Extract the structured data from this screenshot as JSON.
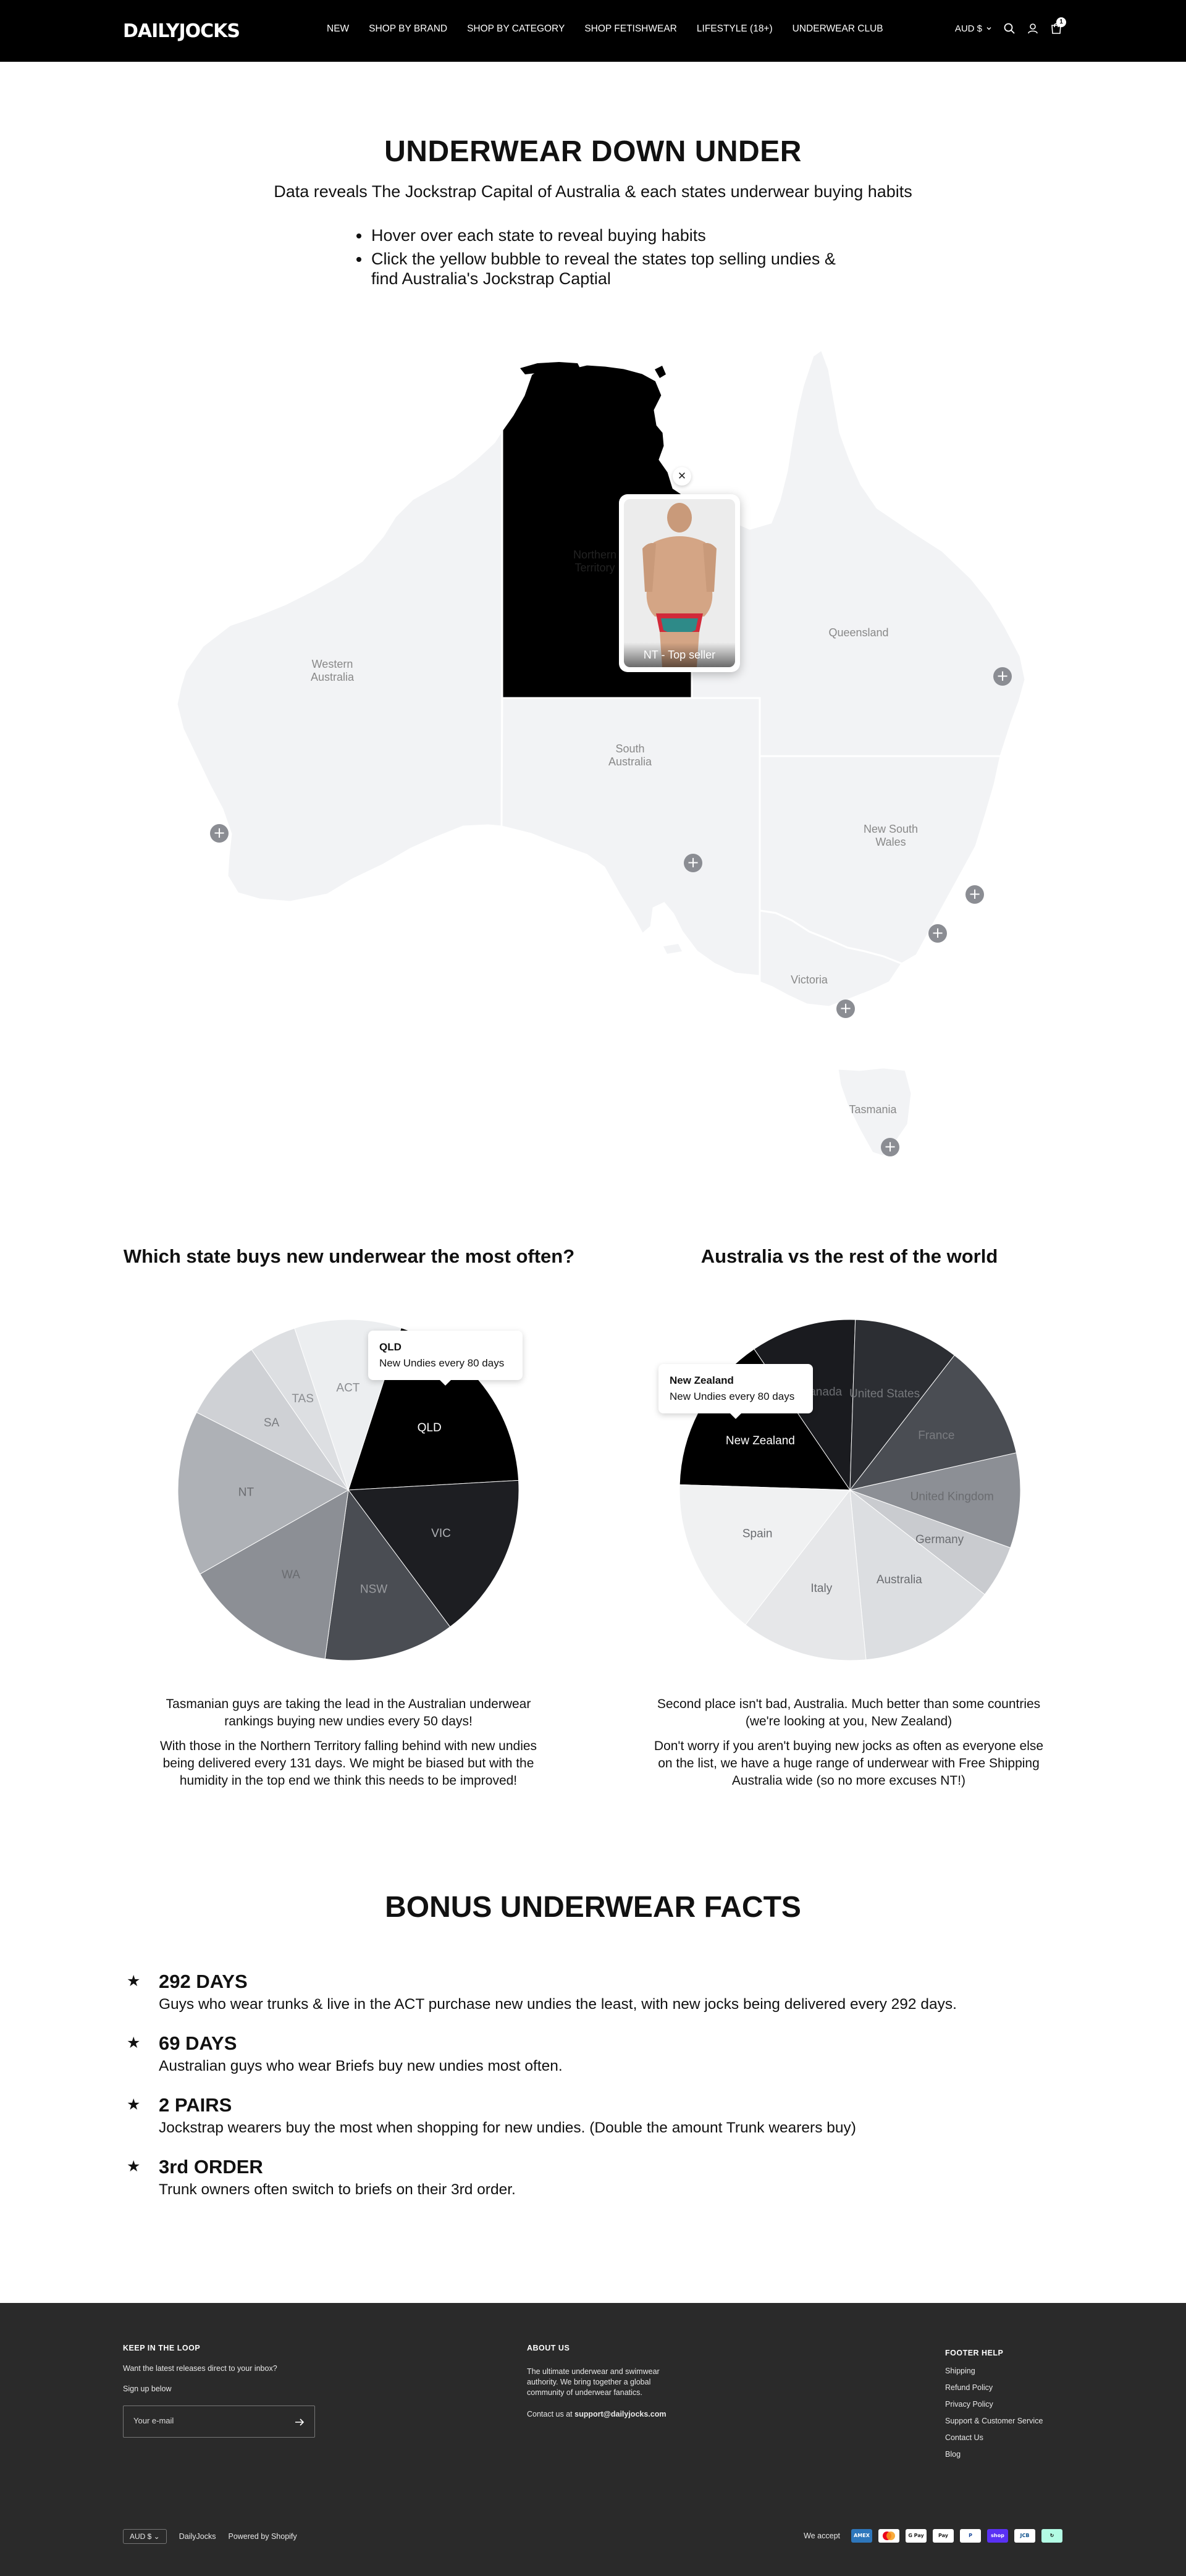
{
  "header": {
    "logo": "DAILYJOCKS",
    "nav": [
      "NEW",
      "SHOP BY BRAND",
      "SHOP BY CATEGORY",
      "SHOP FETISHWEAR",
      "LIFESTYLE (18+)",
      "UNDERWEAR CLUB"
    ],
    "currency": "AUD $",
    "cart_count": "1"
  },
  "intro": {
    "title": "UNDERWEAR DOWN UNDER",
    "subtitle": "Data reveals The Jockstrap Capital of Australia & each states underwear buying habits",
    "bullets": [
      "Hover over each state to reveal buying habits",
      "Click the yellow bubble to reveal the states top selling undies & find Australia's Jockstrap Captial"
    ]
  },
  "map": {
    "states": {
      "wa": "Western Australia",
      "nt": "Northern Territory",
      "qld": "Queensland",
      "sa": "South Australia",
      "nsw": "New South Wales",
      "vic": "Victoria",
      "tas": "Tasmania"
    },
    "active_state": "nt",
    "popup_caption": "NT - Top seller"
  },
  "pies": {
    "left_heading": "Which state buys new underwear the most often?",
    "right_heading": "Australia vs the rest of the world",
    "left_tooltip": {
      "title": "QLD",
      "text": "New Undies every 80 days"
    },
    "right_tooltip": {
      "title": "New Zealand",
      "text": "New Undies every 80 days"
    },
    "left_text": [
      "Tasmanian guys are taking the lead in the Australian underwear rankings buying new undies every 50 days!",
      "With those in the Northern Territory falling behind with new undies being delivered every 131 days. We might be biased but with the humidity in the top end we think this needs to be improved!"
    ],
    "right_text": [
      "Second place isn't bad, Australia. Much better than some countries (we're looking at you, New Zealand)",
      "Don't worry if you aren't buying new jocks as often as everyone else on the list, we have a huge range of underwear with Free Shipping Australia wide (so no more excuses NT!)"
    ]
  },
  "chart_data": [
    {
      "type": "pie",
      "title": "Which state buys new underwear the most often?",
      "categories": [
        "QLD",
        "VIC",
        "NSW",
        "WA",
        "NT",
        "SA",
        "TAS",
        "ACT"
      ],
      "values": [
        17,
        14,
        11,
        13,
        14,
        7,
        4,
        9
      ],
      "colors": [
        "#000000",
        "#1d1e22",
        "#4a4d53",
        "#8c8f95",
        "#aeb1b6",
        "#cfd1d5",
        "#dddfe2",
        "#eceef0"
      ],
      "label_colors": [
        "#ffffff",
        "#b0b2b6",
        "#9a9ca0",
        "#6a6c70",
        "#6a6c70",
        "#7a7c80",
        "#8a8c90",
        "#8a8c90"
      ],
      "annotations": [
        {
          "category": "QLD",
          "text": "New Undies every 80 days"
        }
      ]
    },
    {
      "type": "pie",
      "title": "Australia vs the rest of the world",
      "categories": [
        "New Zealand",
        "Canada",
        "United States",
        "France",
        "United Kingdom",
        "Germany",
        "Australia",
        "Italy",
        "Spain"
      ],
      "values": [
        15,
        10,
        10,
        11,
        9,
        5,
        13,
        12,
        15
      ],
      "colors": [
        "#000000",
        "#1a1b1f",
        "#2c2e33",
        "#4a4d53",
        "#8c8f95",
        "#c9cbcf",
        "#dcdee1",
        "#e6e7e9",
        "#f0f1f2"
      ],
      "label_colors": [
        "#ffffff",
        "#6a6c70",
        "#76787c",
        "#7a7c80",
        "#6a6c70",
        "#6a6c70",
        "#6a6c70",
        "#6a6c70",
        "#6a6c70"
      ],
      "annotations": [
        {
          "category": "New Zealand",
          "text": "New Undies every 80 days"
        }
      ]
    }
  ],
  "bonus": {
    "title": "BONUS UNDERWEAR FACTS",
    "facts": [
      {
        "title": "292 DAYS",
        "text": "Guys who wear trunks & live in the ACT purchase new undies the least, with new jocks being delivered every 292 days."
      },
      {
        "title": "69 DAYS",
        "text": "Australian guys who wear Briefs buy new undies most often."
      },
      {
        "title": "2 PAIRS",
        "text": "Jockstrap wearers buy the most when shopping for new undies. (Double the amount Trunk wearers buy)"
      },
      {
        "title": "3rd ORDER",
        "text": "Trunk owners often switch to briefs on their 3rd order."
      }
    ]
  },
  "footer": {
    "newsletter_title": "KEEP IN THE LOOP",
    "newsletter_text": "Want the latest releases direct to your inbox?",
    "signup": "Sign up below",
    "email_placeholder": "Your e-mail",
    "about_title": "ABOUT US",
    "about_text": "The ultimate underwear and swimwear authority. We bring together a global community of underwear fanatics.",
    "contact_prefix": "Contact us at",
    "contact_email": "support@dailyjocks.com",
    "help_title": "FOOTER HELP",
    "help_links": [
      "Shipping",
      "Refund Policy",
      "Privacy Policy",
      "Support & Customer Service",
      "Contact Us",
      "Blog"
    ],
    "currency": "AUD $",
    "brand": "DailyJocks",
    "powered": "Powered by Shopify",
    "we_accept": "We accept",
    "payment_icons": [
      "amex-icon",
      "mastercard-icon",
      "gpay-icon",
      "applepay-icon",
      "paypal-icon",
      "shoppay-icon",
      "jcb-icon",
      "afterpay-icon"
    ]
  }
}
